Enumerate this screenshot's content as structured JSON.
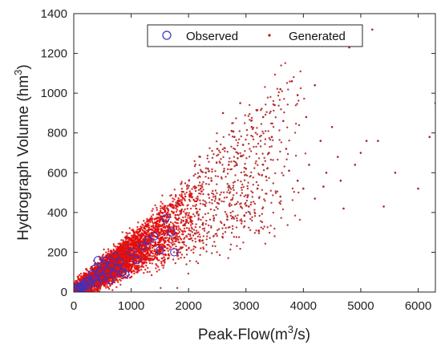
{
  "chart_data": {
    "type": "scatter",
    "title": "",
    "xlabel_main": "Peak-Flow(m",
    "xlabel_sup": "3",
    "xlabel_tail": "/s)",
    "ylabel_main": "Hydrograph Volume (hm",
    "ylabel_sup": "3",
    "ylabel_tail": ")",
    "xlim": [
      0,
      6300
    ],
    "ylim": [
      0,
      1400
    ],
    "x_ticks": [
      0,
      1000,
      2000,
      3000,
      4000,
      5000,
      6000
    ],
    "y_ticks": [
      0,
      200,
      400,
      600,
      800,
      1000,
      1200,
      1400
    ],
    "x_tick_labels": [
      "0",
      "1000",
      "2000",
      "3000",
      "4000",
      "5000",
      "6000"
    ],
    "y_tick_labels": [
      "0",
      "200",
      "400",
      "600",
      "800",
      "1000",
      "1200",
      "1400"
    ],
    "grid": false,
    "legend": {
      "placement": "top-center",
      "entries": [
        "Observed",
        "Generated"
      ]
    },
    "series": [
      {
        "name": "Observed",
        "marker": "circle-open",
        "color": "#3333cc",
        "points": [
          [
            60,
            15
          ],
          [
            80,
            25
          ],
          [
            100,
            20
          ],
          [
            120,
            30
          ],
          [
            140,
            18
          ],
          [
            180,
            40
          ],
          [
            220,
            55
          ],
          [
            260,
            60
          ],
          [
            300,
            50
          ],
          [
            320,
            90
          ],
          [
            350,
            70
          ],
          [
            380,
            120
          ],
          [
            420,
            160
          ],
          [
            450,
            100
          ],
          [
            480,
            80
          ],
          [
            520,
            140
          ],
          [
            560,
            160
          ],
          [
            600,
            110
          ],
          [
            650,
            130
          ],
          [
            700,
            90
          ],
          [
            720,
            180
          ],
          [
            760,
            120
          ],
          [
            800,
            150
          ],
          [
            850,
            100
          ],
          [
            900,
            90
          ],
          [
            1000,
            200
          ],
          [
            1100,
            160
          ],
          [
            1200,
            230
          ],
          [
            1300,
            260
          ],
          [
            1400,
            280
          ],
          [
            1500,
            210
          ],
          [
            1600,
            370
          ],
          [
            1700,
            300
          ],
          [
            1750,
            200
          ],
          [
            400,
            45
          ],
          [
            500,
            70
          ],
          [
            640,
            60
          ],
          [
            200,
            30
          ],
          [
            250,
            35
          ],
          [
            160,
            25
          ]
        ]
      },
      {
        "name": "Generated",
        "marker": "dot",
        "color": "#e01010",
        "points": [
          [
            3600,
            1020
          ],
          [
            3800,
            1060
          ],
          [
            3900,
            990
          ],
          [
            4200,
            1040
          ],
          [
            3500,
            940
          ],
          [
            3300,
            880
          ],
          [
            2900,
            950
          ],
          [
            2600,
            900
          ],
          [
            3100,
            830
          ],
          [
            2800,
            780
          ],
          [
            4800,
            1230
          ],
          [
            5200,
            1320
          ],
          [
            6300,
            950
          ],
          [
            6200,
            780
          ],
          [
            5300,
            760
          ],
          [
            5000,
            700
          ],
          [
            4600,
            680
          ],
          [
            4400,
            600
          ],
          [
            4000,
            520
          ],
          [
            6000,
            520
          ],
          [
            5400,
            430
          ],
          [
            4700,
            420
          ],
          [
            4100,
            640
          ],
          [
            3700,
            720
          ],
          [
            3400,
            700
          ],
          [
            3000,
            620
          ],
          [
            4500,
            830
          ],
          [
            4300,
            760
          ],
          [
            3900,
            560
          ],
          [
            3200,
            520
          ],
          [
            5100,
            760
          ],
          [
            4900,
            640
          ],
          [
            3600,
            480
          ],
          [
            4200,
            470
          ],
          [
            2700,
            640
          ],
          [
            2500,
            720
          ],
          [
            2400,
            560
          ],
          [
            2300,
            600
          ],
          [
            2200,
            680
          ],
          [
            3050,
            430
          ],
          [
            3350,
            580
          ],
          [
            3750,
            610
          ],
          [
            4350,
            530
          ],
          [
            4650,
            560
          ],
          [
            2950,
            740
          ],
          [
            2750,
            810
          ],
          [
            3450,
            780
          ],
          [
            3650,
            860
          ],
          [
            4050,
            880
          ],
          [
            5600,
            600
          ]
        ],
        "density_band": {
          "x_max": 3200,
          "x_core_max": 2300,
          "count": 4200,
          "sparse_count": 650
        }
      }
    ]
  }
}
